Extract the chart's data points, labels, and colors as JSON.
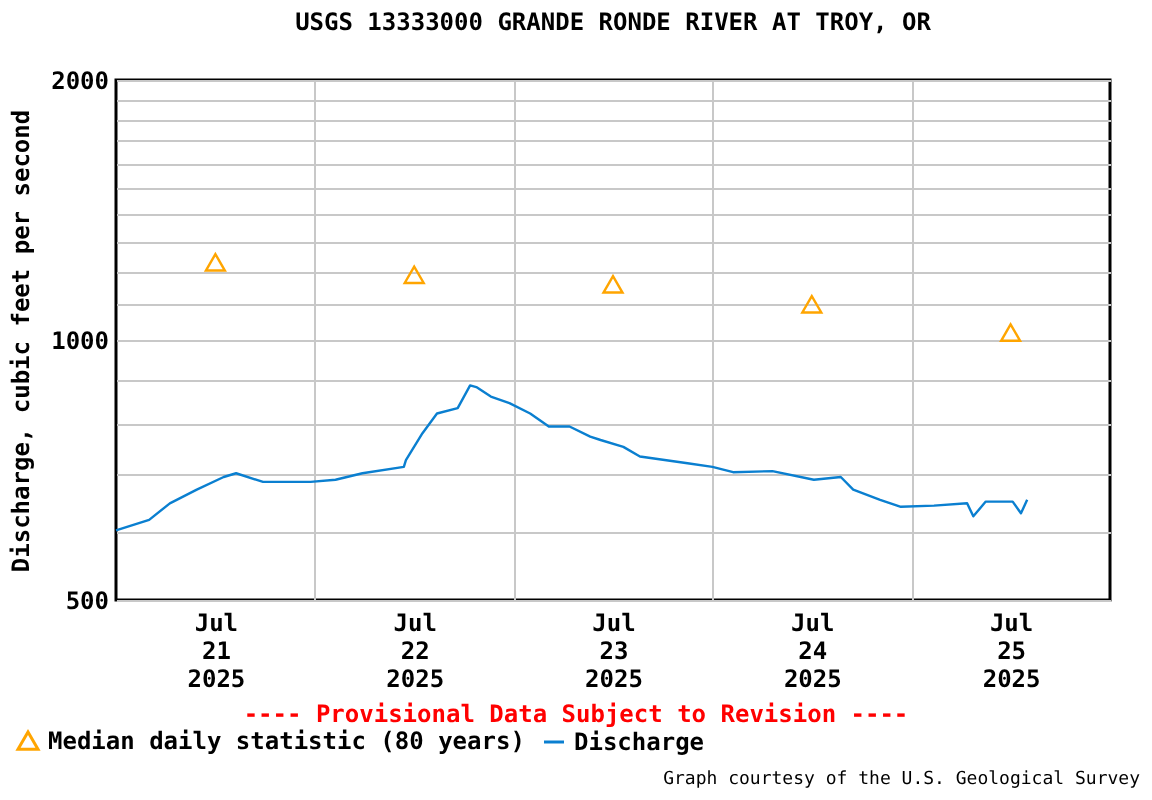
{
  "chart_data": {
    "type": "line",
    "title": "USGS 13333000 GRANDE RONDE RIVER AT TROY, OR",
    "ylabel": "Discharge, cubic feet per second",
    "annotations": [
      "---- Provisional Data Subject to Revision ----",
      "Graph courtesy of the U.S. Geological Survey"
    ],
    "log": "y",
    "grid": true,
    "legend": "bottom left",
    "xlim": [
      "2025-07-21T00:00",
      "2025-07-26T00:00"
    ],
    "xticks": [
      {
        "value": "2025-07-21T12:00",
        "label": "Jul\n21\n2025"
      },
      {
        "value": "2025-07-22T00:00",
        "label": null
      },
      {
        "value": "2025-07-22T12:00",
        "label": "Jul\n22\n2025"
      },
      {
        "value": "2025-07-23T00:00",
        "label": null
      },
      {
        "value": "2025-07-23T12:00",
        "label": "Jul\n23\n2025"
      },
      {
        "value": "2025-07-24T00:00",
        "label": null
      },
      {
        "value": "2025-07-24T12:00",
        "label": "Jul\n24\n2025"
      },
      {
        "value": "2025-07-25T00:00",
        "label": null
      },
      {
        "value": "2025-07-25T12:00",
        "label": "Jul\n25\n2025"
      }
    ],
    "ylim": [
      500,
      2000
    ],
    "yticks": [
      500,
      {
        "value": 600,
        "label": null
      },
      {
        "value": 700,
        "label": null
      },
      {
        "value": 800,
        "label": null
      },
      {
        "value": 900,
        "label": null
      },
      1000,
      {
        "value": 1100,
        "label": null
      },
      {
        "value": 1200,
        "label": null
      },
      {
        "value": 1300,
        "label": null
      },
      {
        "value": 1400,
        "label": null
      },
      {
        "value": 1500,
        "label": null
      },
      {
        "value": 1600,
        "label": null
      },
      {
        "value": 1700,
        "label": null
      },
      {
        "value": 1800,
        "label": null
      },
      {
        "value": 1900,
        "label": null
      },
      2000
    ],
    "series": [
      {
        "name": "Median daily statistic (80 years)",
        "type": "scatter",
        "marker": "triangle",
        "color": "#ffa500",
        "x": [
          "2025-07-21T12:00",
          "2025-07-22T12:00",
          "2025-07-23T12:00",
          "2025-07-24T12:00",
          "2025-07-25T12:00"
        ],
        "values": [
          1230,
          1190,
          1160,
          1100,
          1020
        ]
      },
      {
        "name": "Discharge",
        "type": "line",
        "color": "#0a7fd0",
        "x": [
          "2025-07-21T00:00",
          "2025-07-21T04:00",
          "2025-07-21T06:30",
          "2025-07-21T09:45",
          "2025-07-21T13:00",
          "2025-07-21T14:30",
          "2025-07-21T17:45",
          "2025-07-21T23:30",
          "2025-07-22T02:30",
          "2025-07-22T05:45",
          "2025-07-22T10:45",
          "2025-07-22T11:00",
          "2025-07-22T13:00",
          "2025-07-22T14:45",
          "2025-07-22T17:15",
          "2025-07-22T18:45",
          "2025-07-22T19:30",
          "2025-07-22T21:15",
          "2025-07-22T23:30",
          "2025-07-23T02:00",
          "2025-07-23T04:15",
          "2025-07-23T06:45",
          "2025-07-23T09:15",
          "2025-07-23T10:30",
          "2025-07-23T13:15",
          "2025-07-23T15:15",
          "2025-07-23T21:00",
          "2025-07-24T00:00",
          "2025-07-24T02:30",
          "2025-07-24T07:15",
          "2025-07-24T12:15",
          "2025-07-24T15:30",
          "2025-07-24T17:00",
          "2025-07-24T20:15",
          "2025-07-24T22:45",
          "2025-07-25T02:45",
          "2025-07-25T06:45",
          "2025-07-25T07:30",
          "2025-07-25T09:00",
          "2025-07-25T12:15",
          "2025-07-25T13:15",
          "2025-07-25T14:00"
        ],
        "values": [
          602,
          619,
          647,
          671,
          694,
          701,
          685,
          685,
          689,
          701,
          713,
          726,
          780,
          822,
          834,
          886,
          882,
          860,
          845,
          822,
          794,
          794,
          773,
          766,
          752,
          733,
          720,
          713,
          703,
          705,
          689,
          694,
          671,
          653,
          641,
          643,
          647,
          625,
          650,
          650,
          630,
          653
        ]
      }
    ]
  }
}
